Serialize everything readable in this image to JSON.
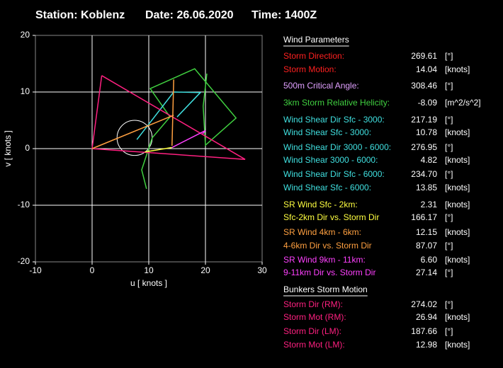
{
  "header": {
    "station": "Station: Koblenz",
    "date": "Date: 26.06.2020",
    "time": "Time: 1400Z"
  },
  "chart_data": {
    "type": "hodograph",
    "x_label": "u  [ knots ]",
    "y_label": "v  [ knots ]",
    "xlim": [
      -10,
      30
    ],
    "ylim": [
      -20,
      20
    ],
    "xticks": [
      -10,
      0,
      10,
      20,
      30
    ],
    "yticks": [
      -20,
      -10,
      0,
      10,
      20
    ],
    "grid": true,
    "series": [
      {
        "color": "#40d040",
        "x": [
          9.6,
          8.75,
          10.6,
          13.75,
          10.25,
          18.1,
          25.4,
          20,
          19.6,
          20.25
        ],
        "values": [
          -7.1,
          -3.75,
          1.9,
          5.6,
          10.6,
          14.1,
          5.4,
          0.6,
          7.5,
          13.25
        ]
      },
      {
        "color": "#40e0e0",
        "x": [
          7.9,
          14.4,
          19.1,
          15
        ],
        "values": [
          1.6,
          10,
          9.9,
          5.6
        ]
      },
      {
        "color": "#ff2080",
        "x": [
          1.7,
          0,
          27,
          1.7
        ],
        "values": [
          12.9,
          0,
          -1.9,
          12.9
        ]
      },
      {
        "color": "#ffa040",
        "x": [
          0,
          14.4
        ],
        "values": [
          0,
          5.9
        ]
      },
      {
        "color": "#ffa040",
        "x": [
          14.1,
          14.4
        ],
        "values": [
          0.5,
          12.2
        ]
      },
      {
        "color": "#ffff40",
        "x": [
          9.3,
          14.1
        ],
        "values": [
          -0.6,
          0.2
        ]
      },
      {
        "color": "#ff40ff",
        "x": [
          14.1,
          20,
          19.5
        ],
        "values": [
          0.2,
          3.2,
          2.6
        ]
      }
    ],
    "circle": {
      "u": 7.5,
      "v": 1.9,
      "radius": 3.1,
      "color": "#ffffff"
    }
  },
  "wind_parameters": {
    "title": "Wind Parameters",
    "rows": [
      {
        "label": "Storm Direction:",
        "value": "269.61",
        "unit": "[°]",
        "color": "#ff2020"
      },
      {
        "label": "Storm Motion:",
        "value": "14.04",
        "unit": "[knots]",
        "color": "#ff2020"
      },
      {
        "label": "500m Critical Angle:",
        "value": "308.46",
        "unit": "[°]",
        "color": "#e0a0ff"
      },
      {
        "label": "3km Storm Relative Helicity:",
        "value": "-8.09",
        "unit": "[m^2/s^2]",
        "color": "#40d040"
      },
      {
        "label": "Wind Shear Dir Sfc - 3000:",
        "value": "217.19",
        "unit": "[°]",
        "color": "#40e0e0"
      },
      {
        "label": "Wind Shear Sfc - 3000:",
        "value": "10.78",
        "unit": "[knots]",
        "color": "#40e0e0"
      },
      {
        "label": "Wind Shear Dir 3000 - 6000:",
        "value": "276.95",
        "unit": "[°]",
        "color": "#40e0e0"
      },
      {
        "label": "Wind Shear 3000 - 6000:",
        "value": "4.82",
        "unit": "[knots]",
        "color": "#40e0e0"
      },
      {
        "label": "Wind Shear Dir Sfc - 6000:",
        "value": "234.70",
        "unit": "[°]",
        "color": "#40e0e0"
      },
      {
        "label": "Wind Shear Sfc - 6000:",
        "value": "13.85",
        "unit": "[knots]",
        "color": "#40e0e0"
      },
      {
        "label": "SR Wind Sfc - 2km:",
        "value": "2.31",
        "unit": "[knots]",
        "color": "#ffff40"
      },
      {
        "label": "Sfc-2km Dir vs. Storm Dir",
        "value": "166.17",
        "unit": "[°]",
        "color": "#ffff40"
      },
      {
        "label": "SR Wind 4km - 6km:",
        "value": "12.15",
        "unit": "[knots]",
        "color": "#ffa040"
      },
      {
        "label": "4-6km Dir vs. Storm Dir",
        "value": "87.07",
        "unit": "[°]",
        "color": "#ffa040"
      },
      {
        "label": "SR Wind 9km - 11km:",
        "value": "6.60",
        "unit": "[knots]",
        "color": "#ff40ff"
      },
      {
        "label": "9-11km Dir vs. Storm Dir",
        "value": "27.14",
        "unit": "[°]",
        "color": "#ff40ff"
      }
    ]
  },
  "bunkers": {
    "title": "Bunkers Storm Motion",
    "rows": [
      {
        "label": "Storm Dir (RM):",
        "value": "274.02",
        "unit": "[°]",
        "color": "#ff2080"
      },
      {
        "label": "Storm Mot (RM):",
        "value": "26.94",
        "unit": "[knots]",
        "color": "#ff2080"
      },
      {
        "label": "Storm Dir (LM):",
        "value": "187.66",
        "unit": "[°]",
        "color": "#ff2080"
      },
      {
        "label": "Storm Mot (LM):",
        "value": "12.98",
        "unit": "[knots]",
        "color": "#ff2080"
      }
    ]
  }
}
